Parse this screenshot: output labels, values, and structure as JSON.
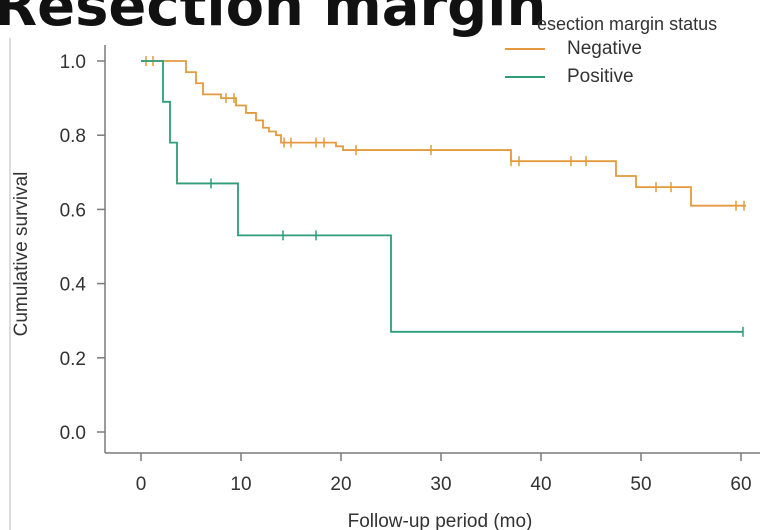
{
  "page_title": "Resection margin",
  "colors": {
    "negative": "#E49A3C",
    "positive": "#2E9E76",
    "axis": "#7a7a7a"
  },
  "chart_data": {
    "type": "line",
    "title": "",
    "xlabel": "Follow-up period (mo)",
    "ylabel": "Cumulative survival",
    "xlim": [
      0,
      60
    ],
    "ylim": [
      0,
      1.0
    ],
    "x_ticks": [
      0,
      10,
      20,
      30,
      40,
      50,
      60
    ],
    "y_ticks": [
      0.0,
      0.2,
      0.4,
      0.6,
      0.8,
      1.0
    ],
    "x_tick_labels": [
      "0",
      "10",
      "20",
      "30",
      "40",
      "50",
      "60"
    ],
    "y_tick_labels": [
      "0.0",
      "0.2",
      "0.4",
      "0.6",
      "0.8",
      "1.0"
    ],
    "legend": {
      "title": "esection margin status",
      "placement": "top-right",
      "entries": [
        "Negative",
        "Positive"
      ]
    },
    "grid": false,
    "series": [
      {
        "name": "Negative",
        "steps": [
          [
            0,
            1.0
          ],
          [
            4.5,
            0.97
          ],
          [
            5.5,
            0.94
          ],
          [
            6.2,
            0.91
          ],
          [
            8,
            0.9
          ],
          [
            9.5,
            0.88
          ],
          [
            10.5,
            0.86
          ],
          [
            11.5,
            0.84
          ],
          [
            12.2,
            0.82
          ],
          [
            12.8,
            0.81
          ],
          [
            13.5,
            0.8
          ],
          [
            14,
            0.78
          ],
          [
            19.5,
            0.77
          ],
          [
            20.2,
            0.76
          ],
          [
            37,
            0.73
          ],
          [
            47.5,
            0.69
          ],
          [
            49.5,
            0.66
          ],
          [
            55,
            0.61
          ],
          [
            60.5,
            0.61
          ]
        ],
        "censored": [
          [
            0.5,
            1.0
          ],
          [
            1.2,
            1.0
          ],
          [
            8.5,
            0.9
          ],
          [
            9.3,
            0.9
          ],
          [
            14.3,
            0.78
          ],
          [
            15,
            0.78
          ],
          [
            17.5,
            0.78
          ],
          [
            18.3,
            0.78
          ],
          [
            21.5,
            0.76
          ],
          [
            29,
            0.76
          ],
          [
            37,
            0.73
          ],
          [
            37.8,
            0.73
          ],
          [
            43,
            0.73
          ],
          [
            44.5,
            0.73
          ],
          [
            51.5,
            0.66
          ],
          [
            53,
            0.66
          ],
          [
            59.5,
            0.61
          ],
          [
            60.3,
            0.61
          ]
        ]
      },
      {
        "name": "Positive",
        "steps": [
          [
            0,
            1.0
          ],
          [
            1.8,
            1.0
          ],
          [
            2.2,
            0.89
          ],
          [
            2.9,
            0.78
          ],
          [
            3.6,
            0.67
          ],
          [
            9.7,
            0.53
          ],
          [
            25,
            0.27
          ],
          [
            60.2,
            0.27
          ]
        ],
        "censored": [
          [
            7,
            0.67
          ],
          [
            14.2,
            0.53
          ],
          [
            17.5,
            0.53
          ],
          [
            60.2,
            0.27
          ]
        ]
      }
    ]
  }
}
